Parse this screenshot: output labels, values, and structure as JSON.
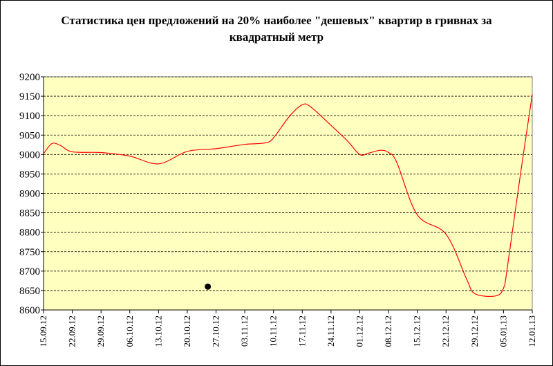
{
  "chart_data": {
    "type": "line",
    "title": "Статистика цен предложений на 20% наиболее \"дешевых\" квартир в гривнах за квадратный метр",
    "xlabel": "",
    "ylabel": "",
    "ylim": [
      8600,
      9200
    ],
    "yticks": [
      8600,
      8650,
      8700,
      8750,
      8800,
      8850,
      8900,
      8950,
      9000,
      9050,
      9100,
      9150,
      9200
    ],
    "xtick_labels": [
      "15.09.12",
      "22.09.12",
      "29.09.12",
      "06.10.12",
      "13.10.12",
      "20.10.12",
      "27.10.12",
      "03.11.12",
      "10.11.12",
      "17.11.12",
      "24.11.12",
      "01.12.12",
      "08.12.12",
      "15.12.12",
      "22.12.12",
      "29.12.12",
      "05.01.13",
      "12.01.13"
    ],
    "x": [
      "15.09.12",
      "17.09.12",
      "19.09.12",
      "22.09.12",
      "29.09.12",
      "06.10.12",
      "13.10.12",
      "20.10.12",
      "27.10.12",
      "03.11.12",
      "08.11.12",
      "10.11.12",
      "14.11.12",
      "17.11.12",
      "19.11.12",
      "24.11.12",
      "28.11.12",
      "01.12.12",
      "03.12.12",
      "06.12.12",
      "08.12.12",
      "10.12.12",
      "15.12.12",
      "22.12.12",
      "27.12.12",
      "29.12.12",
      "03.01.13",
      "05.01.13",
      "06.01.13",
      "09.01.13",
      "12.01.13"
    ],
    "values": [
      9002,
      9028,
      9024,
      9007,
      9005,
      8996,
      8976,
      9008,
      9015,
      9026,
      9030,
      9043,
      9100,
      9128,
      9123,
      9075,
      9035,
      9000,
      9003,
      9011,
      9005,
      8980,
      8845,
      8795,
      8680,
      8642,
      8636,
      8656,
      8715,
      8940,
      9155
    ],
    "grid": {
      "horizontal": true,
      "style": "dashed"
    },
    "legend": "none",
    "marker_point": {
      "x": "25.10.12",
      "y": 8660
    },
    "colors": {
      "line": "#ff0000",
      "plot_background": "#ffffc0",
      "grid": "#000000",
      "marker": "#000000"
    }
  }
}
